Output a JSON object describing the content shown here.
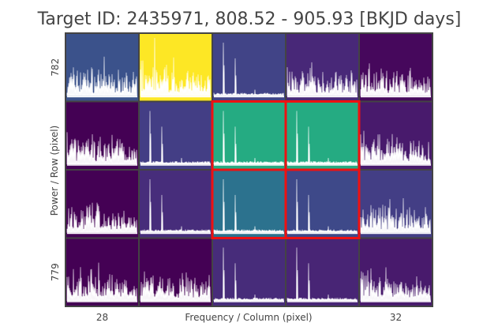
{
  "chart_data": {
    "type": "heatmap",
    "title": "Target ID: 2435971, 808.52 - 905.93 [BKJD days]",
    "xlabel": "Frequency / Column (pixel)",
    "ylabel": "Power / Row (pixel)",
    "x_ticks": [
      {
        "col": 0,
        "label": "28"
      },
      {
        "col": 4,
        "label": "32"
      }
    ],
    "y_ticks": [
      {
        "row": 0,
        "label": "782"
      },
      {
        "row": 3,
        "label": "779"
      }
    ],
    "grid": {
      "rows": 4,
      "cols": 5,
      "colors": [
        [
          "#3b528b",
          "#fde725",
          "#414487",
          "#482878",
          "#46085c"
        ],
        [
          "#440154",
          "#433e85",
          "#25ab82",
          "#25ab82",
          "#481a6c"
        ],
        [
          "#440154",
          "#472d7b",
          "#2c728e",
          "#3e4989",
          "#433e85"
        ],
        [
          "#440154",
          "#440154",
          "#472c7a",
          "#482575",
          "#481a6c"
        ]
      ],
      "spectrum_type": [
        [
          "noisy",
          "noisy",
          "peaks",
          "noisy",
          "noisy"
        ],
        [
          "noisy",
          "peaks",
          "peaks",
          "peaks",
          "noisy"
        ],
        [
          "noisy",
          "peaks",
          "peaks",
          "peaks",
          "noisy"
        ],
        [
          "noisy",
          "noisy",
          "peaks",
          "peaks",
          "noisy"
        ]
      ],
      "aperture_mask": [
        [
          false,
          false,
          false,
          false,
          false
        ],
        [
          false,
          false,
          true,
          true,
          false
        ],
        [
          false,
          false,
          true,
          true,
          false
        ],
        [
          false,
          false,
          false,
          false,
          false
        ]
      ]
    }
  }
}
